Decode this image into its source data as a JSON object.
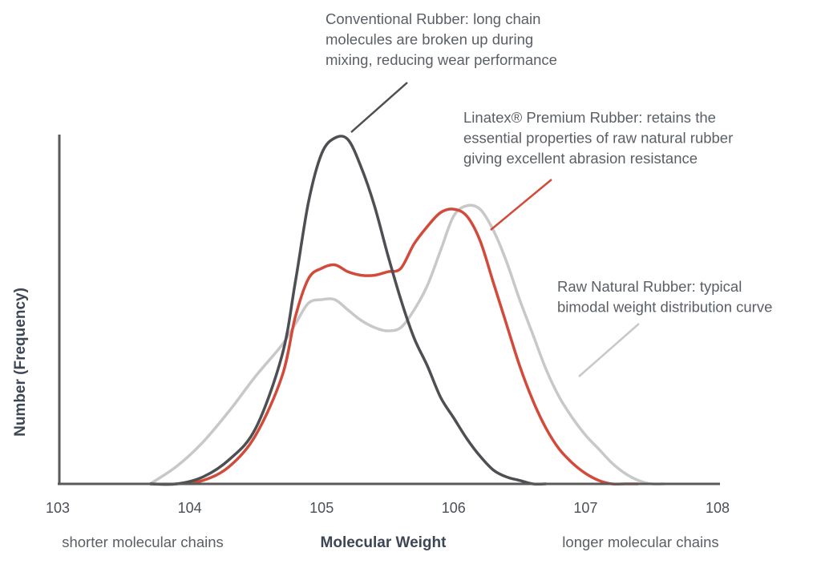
{
  "chart_data": {
    "type": "line",
    "title": "",
    "xlabel": "Molecular Weight",
    "ylabel": "Number (Frequency)",
    "x_ticks": [
      "103",
      "104",
      "105",
      "106",
      "107",
      "108"
    ],
    "xlim": [
      3,
      8
    ],
    "x_scale": "log10",
    "ylim": [
      0,
      1
    ],
    "y_ticks": [],
    "grid": false,
    "left_caption": "shorter molecular chains",
    "right_caption": "longer molecular chains",
    "series": [
      {
        "name": "Conventional Rubber",
        "color": "#4d4f53",
        "x": [
          3.7,
          3.9,
          4.1,
          4.3,
          4.5,
          4.7,
          4.8,
          4.9,
          5.0,
          5.1,
          5.2,
          5.3,
          5.4,
          5.5,
          5.6,
          5.7,
          5.8,
          5.9,
          6.0,
          6.1,
          6.2,
          6.3,
          6.4,
          6.5,
          6.6,
          6.7
        ],
        "y": [
          0.0,
          0.0,
          0.02,
          0.07,
          0.16,
          0.37,
          0.58,
          0.81,
          0.95,
          0.995,
          0.99,
          0.91,
          0.8,
          0.66,
          0.53,
          0.42,
          0.34,
          0.25,
          0.19,
          0.13,
          0.08,
          0.04,
          0.02,
          0.01,
          0.0,
          0.0
        ]
      },
      {
        "name": "Linatex® Premium Rubber",
        "color": "#d24b3a",
        "x": [
          3.7,
          3.9,
          4.1,
          4.3,
          4.5,
          4.7,
          4.8,
          4.9,
          5.0,
          5.1,
          5.2,
          5.3,
          5.4,
          5.5,
          5.6,
          5.7,
          5.8,
          5.9,
          6.0,
          6.1,
          6.2,
          6.3,
          6.4,
          6.5,
          6.6,
          6.7,
          6.8,
          6.9,
          7.0,
          7.1,
          7.2,
          7.3,
          7.4
        ],
        "y": [
          0.0,
          0.0,
          0.01,
          0.05,
          0.14,
          0.31,
          0.48,
          0.59,
          0.62,
          0.63,
          0.61,
          0.6,
          0.6,
          0.61,
          0.62,
          0.69,
          0.74,
          0.78,
          0.79,
          0.77,
          0.7,
          0.58,
          0.46,
          0.34,
          0.24,
          0.16,
          0.1,
          0.06,
          0.03,
          0.01,
          0.0,
          0.0,
          0.0
        ]
      },
      {
        "name": "Raw Natural Rubber",
        "color": "#c8c8c8",
        "x": [
          3.7,
          3.9,
          4.1,
          4.3,
          4.5,
          4.7,
          4.8,
          4.9,
          5.0,
          5.1,
          5.2,
          5.3,
          5.4,
          5.5,
          5.6,
          5.7,
          5.8,
          5.9,
          6.0,
          6.1,
          6.2,
          6.3,
          6.4,
          6.5,
          6.6,
          6.7,
          6.8,
          6.9,
          7.0,
          7.1,
          7.2,
          7.3,
          7.4,
          7.5,
          7.6
        ],
        "y": [
          0.0,
          0.05,
          0.12,
          0.21,
          0.31,
          0.4,
          0.46,
          0.52,
          0.53,
          0.53,
          0.5,
          0.47,
          0.45,
          0.44,
          0.45,
          0.5,
          0.57,
          0.67,
          0.77,
          0.8,
          0.79,
          0.73,
          0.64,
          0.53,
          0.43,
          0.33,
          0.25,
          0.19,
          0.14,
          0.1,
          0.06,
          0.03,
          0.01,
          0.0,
          0.0
        ]
      }
    ],
    "annotations": [
      {
        "series": "Conventional Rubber",
        "lines": [
          "Conventional Rubber: long chain",
          "molecules are broken up during",
          "mixing, reducing wear performance"
        ]
      },
      {
        "series": "Linatex® Premium Rubber",
        "lines": [
          "Linatex® Premium Rubber: retains the",
          "essential properties of raw natural rubber",
          "giving excellent abrasion resistance"
        ]
      },
      {
        "series": "Raw Natural Rubber",
        "lines": [
          "Raw Natural Rubber: typical",
          "bimodal weight distribution curve"
        ]
      }
    ]
  }
}
